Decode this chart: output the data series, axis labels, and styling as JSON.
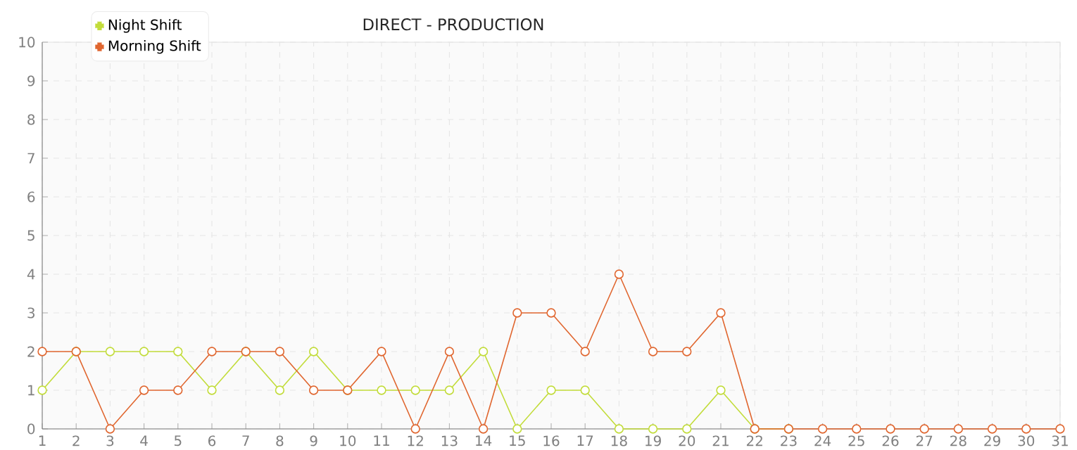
{
  "chart_data": {
    "type": "line",
    "title": "DIRECT - PRODUCTION",
    "x": [
      1,
      2,
      3,
      4,
      5,
      6,
      7,
      8,
      9,
      10,
      11,
      12,
      13,
      14,
      15,
      16,
      17,
      18,
      19,
      20,
      21,
      22,
      23,
      24,
      25,
      26,
      27,
      28,
      29,
      30,
      31
    ],
    "series": [
      {
        "name": "Night Shift",
        "color": "#c2dc3a",
        "values": [
          1,
          2,
          2,
          2,
          2,
          1,
          2,
          1,
          2,
          1,
          1,
          1,
          1,
          2,
          0,
          1,
          1,
          0,
          0,
          0,
          1,
          0,
          0,
          null,
          null,
          null,
          null,
          null,
          null,
          null,
          null
        ]
      },
      {
        "name": "Morning Shift",
        "color": "#e0662f",
        "values": [
          2,
          2,
          0,
          1,
          1,
          2,
          2,
          2,
          1,
          1,
          2,
          0,
          2,
          0,
          3,
          3,
          2,
          4,
          2,
          2,
          3,
          0,
          0,
          0,
          0,
          0,
          0,
          0,
          0,
          0,
          0
        ]
      }
    ],
    "xlim": [
      1,
      31
    ],
    "xticks": [
      1,
      2,
      3,
      4,
      5,
      6,
      7,
      8,
      9,
      10,
      11,
      12,
      13,
      14,
      15,
      16,
      17,
      18,
      19,
      20,
      21,
      22,
      23,
      24,
      25,
      26,
      27,
      28,
      29,
      30,
      31
    ],
    "ylim": [
      0,
      10
    ],
    "yticks": [
      0,
      1,
      2,
      3,
      4,
      5,
      6,
      7,
      8,
      9,
      10
    ],
    "grid": true,
    "legend": "top left",
    "marker": "circle",
    "line_style": "solid"
  }
}
